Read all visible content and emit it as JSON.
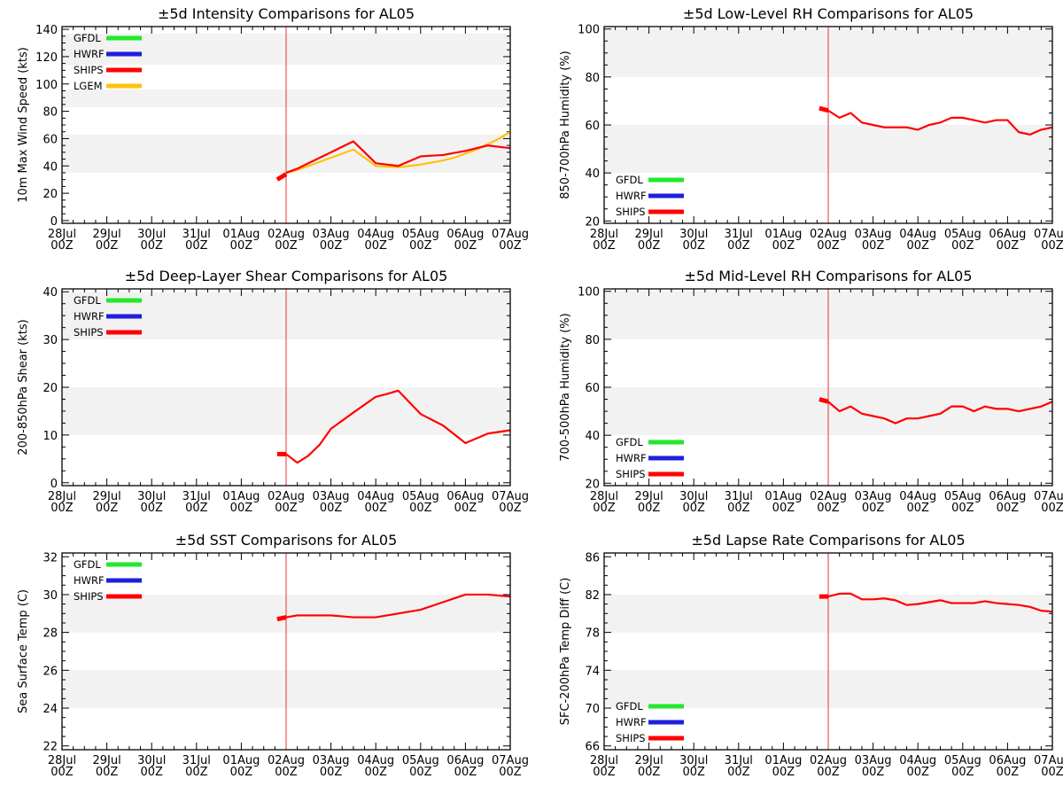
{
  "xtick_labels": [
    [
      "28Jul",
      "00Z"
    ],
    [
      "29Jul",
      "00Z"
    ],
    [
      "30Jul",
      "00Z"
    ],
    [
      "31Jul",
      "00Z"
    ],
    [
      "01Aug",
      "00Z"
    ],
    [
      "02Aug",
      "00Z"
    ],
    [
      "03Aug",
      "00Z"
    ],
    [
      "04Aug",
      "00Z"
    ],
    [
      "05Aug",
      "00Z"
    ],
    [
      "06Aug",
      "00Z"
    ],
    [
      "07Aug",
      "00Z"
    ]
  ],
  "vline_x": 5,
  "chart_data": [
    {
      "type": "line",
      "title": "±5d Intensity Comparisons for AL05",
      "ylabel": "10m Max Wind Speed (kts)",
      "ylim": [
        -2,
        142
      ],
      "yticks": [
        0,
        20,
        40,
        60,
        80,
        100,
        120,
        140
      ],
      "bands": [
        [
          35,
          63
        ],
        [
          83,
          96
        ],
        [
          114,
          137
        ]
      ],
      "legend_position": "top-left",
      "legend": [
        {
          "name": "GFDL",
          "color": "#22e82b"
        },
        {
          "name": "HWRF",
          "color": "#1f1fdd"
        },
        {
          "name": "SHIPS",
          "color": "#ff0000"
        },
        {
          "name": "LGEM",
          "color": "#ffc20e"
        }
      ],
      "series": [
        {
          "name": "LGEM",
          "color": "#ffc20e",
          "x": [
            5,
            5.25,
            5.5,
            5.75,
            6,
            6.25,
            6.5,
            6.75,
            7,
            7.25,
            7.5,
            7.75,
            8,
            8.25,
            8.5,
            8.75,
            9,
            9.25,
            9.5,
            9.75,
            10
          ],
          "values": [
            35,
            37,
            40,
            43,
            46,
            49,
            52,
            46,
            40,
            39.5,
            39,
            40,
            41,
            42.5,
            44,
            46,
            49,
            52,
            56,
            60,
            65
          ]
        },
        {
          "name": "SHIPS",
          "color": "#ff0000",
          "x": [
            5,
            5.25,
            5.5,
            5.75,
            6,
            6.25,
            6.5,
            6.75,
            7,
            7.25,
            7.5,
            7.75,
            8,
            8.25,
            8.5,
            8.75,
            9,
            9.25,
            9.5,
            9.75,
            10
          ],
          "values": [
            35,
            38,
            42,
            46,
            50,
            54,
            58,
            50,
            42,
            41,
            40,
            43.5,
            47,
            47.5,
            48,
            49.5,
            51,
            53,
            55,
            54,
            53
          ]
        }
      ],
      "stubs": [
        {
          "color": "#ff0000",
          "x": [
            4.8,
            5
          ],
          "values": [
            30,
            34
          ]
        }
      ]
    },
    {
      "type": "line",
      "title": "±5d Low-Level RH Comparisons for AL05",
      "ylabel": "850-700hPa Humidity (%)",
      "ylim": [
        19,
        101
      ],
      "yticks": [
        20,
        40,
        60,
        80,
        100
      ],
      "bands": [
        [
          40,
          60
        ],
        [
          80,
          100
        ]
      ],
      "legend_position": "bottom-left",
      "legend": [
        {
          "name": "GFDL",
          "color": "#22e82b"
        },
        {
          "name": "HWRF",
          "color": "#1f1fdd"
        },
        {
          "name": "SHIPS",
          "color": "#ff0000"
        }
      ],
      "series": [
        {
          "name": "SHIPS",
          "color": "#ff0000",
          "x": [
            5,
            5.25,
            5.5,
            5.75,
            6,
            6.25,
            6.5,
            6.75,
            7,
            7.25,
            7.5,
            7.75,
            8,
            8.25,
            8.5,
            8.75,
            9,
            9.25,
            9.5,
            9.75,
            10
          ],
          "values": [
            66,
            63,
            65,
            61,
            60,
            59,
            59,
            59,
            58,
            60,
            61,
            63,
            63,
            62,
            61,
            62,
            62,
            57,
            56,
            58,
            59
          ]
        }
      ],
      "stubs": [
        {
          "color": "#ff0000",
          "x": [
            4.8,
            5
          ],
          "values": [
            67,
            66
          ]
        }
      ]
    },
    {
      "type": "line",
      "title": "±5d Deep-Layer Shear Comparisons for AL05",
      "ylabel": "200-850hPa Shear (kts)",
      "ylim": [
        -0.6,
        40.6
      ],
      "yticks": [
        0,
        10,
        20,
        30,
        40
      ],
      "bands": [
        [
          10,
          20
        ],
        [
          30,
          40
        ]
      ],
      "legend_position": "top-left",
      "legend": [
        {
          "name": "GFDL",
          "color": "#22e82b"
        },
        {
          "name": "HWRF",
          "color": "#1f1fdd"
        },
        {
          "name": "SHIPS",
          "color": "#ff0000"
        }
      ],
      "series": [
        {
          "name": "SHIPS",
          "color": "#ff0000",
          "x": [
            5,
            5.25,
            5.5,
            5.75,
            6,
            6.5,
            7,
            7.25,
            7.5,
            8,
            8.5,
            9,
            9.5,
            10
          ],
          "values": [
            6,
            4.2,
            5.7,
            8,
            11.3,
            14.7,
            18,
            18.6,
            19.3,
            14.4,
            12,
            8.3,
            10.3,
            11
          ]
        }
      ],
      "stubs": [
        {
          "color": "#ff0000",
          "x": [
            4.8,
            5
          ],
          "values": [
            6,
            6
          ]
        }
      ]
    },
    {
      "type": "line",
      "title": "±5d Mid-Level RH Comparisons for AL05",
      "ylabel": "700-500hPa Humidity (%)",
      "ylim": [
        19,
        101
      ],
      "yticks": [
        20,
        40,
        60,
        80,
        100
      ],
      "bands": [
        [
          40,
          60
        ],
        [
          80,
          100
        ]
      ],
      "legend_position": "bottom-left",
      "legend": [
        {
          "name": "GFDL",
          "color": "#22e82b"
        },
        {
          "name": "HWRF",
          "color": "#1f1fdd"
        },
        {
          "name": "SHIPS",
          "color": "#ff0000"
        }
      ],
      "series": [
        {
          "name": "SHIPS",
          "color": "#ff0000",
          "x": [
            5,
            5.25,
            5.5,
            5.75,
            6,
            6.25,
            6.5,
            6.75,
            7,
            7.25,
            7.5,
            7.75,
            8,
            8.25,
            8.5,
            8.75,
            9,
            9.25,
            9.5,
            9.75,
            10
          ],
          "values": [
            54,
            50,
            52,
            49,
            48,
            47,
            45,
            47,
            47,
            48,
            49,
            52,
            52,
            50,
            52,
            51,
            51,
            50,
            51,
            52,
            54
          ]
        }
      ],
      "stubs": [
        {
          "color": "#ff0000",
          "x": [
            4.8,
            5
          ],
          "values": [
            55,
            54
          ]
        }
      ]
    },
    {
      "type": "line",
      "title": "±5d SST Comparisons for AL05",
      "ylabel": "Sea Surface Temp (C)",
      "ylim": [
        21.8,
        32.2
      ],
      "yticks": [
        22,
        24,
        26,
        28,
        30,
        32
      ],
      "bands": [
        [
          24,
          26
        ],
        [
          28,
          30
        ]
      ],
      "legend_position": "top-left",
      "legend": [
        {
          "name": "GFDL",
          "color": "#22e82b"
        },
        {
          "name": "HWRF",
          "color": "#1f1fdd"
        },
        {
          "name": "SHIPS",
          "color": "#ff0000"
        }
      ],
      "series": [
        {
          "name": "SHIPS",
          "color": "#ff0000",
          "x": [
            5,
            5.25,
            5.5,
            6,
            6.5,
            7,
            7.5,
            8,
            8.5,
            9,
            9.5,
            10
          ],
          "values": [
            28.8,
            28.9,
            28.9,
            28.9,
            28.8,
            28.8,
            29,
            29.2,
            29.6,
            30,
            30,
            29.9
          ]
        }
      ],
      "stubs": [
        {
          "color": "#ff0000",
          "x": [
            4.8,
            5
          ],
          "values": [
            28.7,
            28.8
          ]
        }
      ]
    },
    {
      "type": "line",
      "title": "±5d Lapse Rate Comparisons for AL05",
      "ylabel": "SFC-200hPa Temp Diff (C)",
      "ylim": [
        65.6,
        86.4
      ],
      "yticks": [
        66,
        70,
        74,
        78,
        82,
        86
      ],
      "bands": [
        [
          70,
          74
        ],
        [
          78,
          82
        ]
      ],
      "legend_position": "bottom-left",
      "legend": [
        {
          "name": "GFDL",
          "color": "#22e82b"
        },
        {
          "name": "HWRF",
          "color": "#1f1fdd"
        },
        {
          "name": "SHIPS",
          "color": "#ff0000"
        }
      ],
      "series": [
        {
          "name": "SHIPS",
          "color": "#ff0000",
          "x": [
            5,
            5.25,
            5.5,
            5.75,
            6,
            6.25,
            6.5,
            6.75,
            7,
            7.25,
            7.5,
            7.75,
            8,
            8.25,
            8.5,
            8.75,
            9,
            9.25,
            9.5,
            9.75,
            10
          ],
          "values": [
            81.8,
            82.1,
            82.1,
            81.5,
            81.5,
            81.6,
            81.4,
            80.9,
            81,
            81.2,
            81.4,
            81.1,
            81.1,
            81.1,
            81.3,
            81.1,
            81,
            80.9,
            80.7,
            80.3,
            80.2
          ]
        }
      ],
      "stubs": [
        {
          "color": "#ff0000",
          "x": [
            4.8,
            5
          ],
          "values": [
            81.8,
            81.8
          ]
        }
      ]
    }
  ]
}
